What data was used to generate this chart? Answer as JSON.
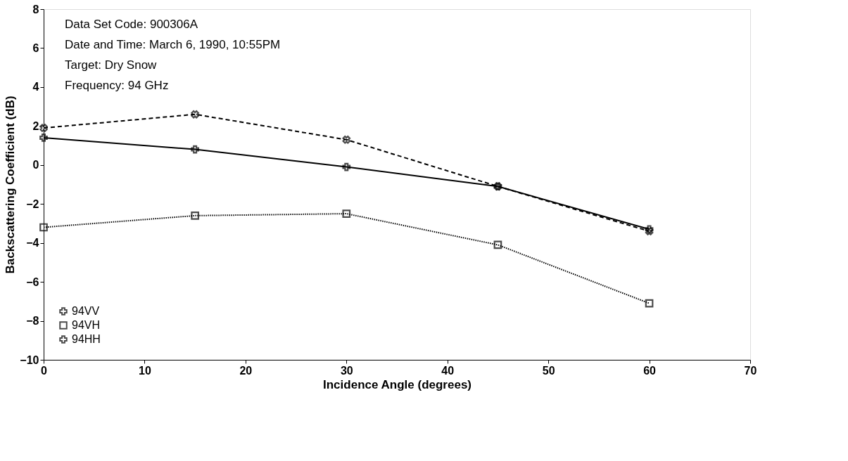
{
  "chart_data": {
    "type": "line",
    "xlabel": "Incidence  Angle  (degrees)",
    "ylabel": "Backscattering  Coefficient  (dB)",
    "annotations": [
      "Data Set Code:  900306A",
      "Date and Time:  March 6, 1990, 10:55PM",
      "Target:  Dry Snow",
      "Frequency:  94 GHz"
    ],
    "x": [
      0,
      15,
      30,
      45,
      60
    ],
    "series": [
      {
        "name": "94VV",
        "color": "#000000",
        "values": [
          1.4,
          0.8,
          -0.1,
          -1.1,
          -3.3
        ],
        "marker": "plus",
        "line_style": "solid"
      },
      {
        "name": "94VH",
        "color": "#000000",
        "values": [
          -3.2,
          -2.6,
          -2.5,
          -4.1,
          -7.1
        ],
        "marker": "square",
        "line_style": "dotted"
      },
      {
        "name": "94HH",
        "color": "#000000",
        "values": [
          1.9,
          2.6,
          1.3,
          -1.1,
          -3.4
        ],
        "marker": "x",
        "line_style": "dashed"
      }
    ],
    "xlim": [
      0,
      70
    ],
    "xticks": [
      0,
      10,
      20,
      30,
      40,
      50,
      60,
      70
    ],
    "ylim": [
      -10,
      8
    ],
    "yticks": [
      -10,
      -8,
      -6,
      -4,
      -2,
      0,
      2,
      4,
      6,
      8
    ],
    "grid": false,
    "legend": "bottom left"
  }
}
